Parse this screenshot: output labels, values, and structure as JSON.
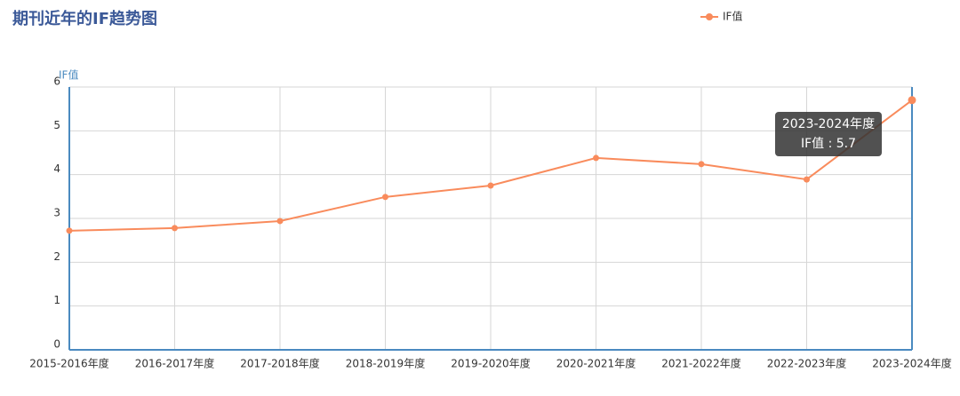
{
  "chart_data": {
    "type": "line",
    "title": "期刊近年的IF趋势图",
    "y_label": "IF值",
    "categories": [
      "2015-2016年度",
      "2016-2017年度",
      "2017-2018年度",
      "2018-2019年度",
      "2019-2020年度",
      "2020-2021年度",
      "2021-2022年度",
      "2022-2023年度",
      "2023-2024年度"
    ],
    "series": [
      {
        "name": "IF值",
        "color": "#f98b5c",
        "values": [
          2.72,
          2.78,
          2.94,
          3.49,
          3.75,
          4.38,
          4.24,
          3.89,
          5.7
        ]
      }
    ],
    "ylim": [
      0,
      6
    ],
    "yticks": [
      0,
      1,
      2,
      3,
      4,
      5,
      6
    ],
    "grid": true,
    "legend": "top",
    "tooltip": {
      "title": "2023-2024年度",
      "text": "IF值 : 5.7"
    }
  }
}
